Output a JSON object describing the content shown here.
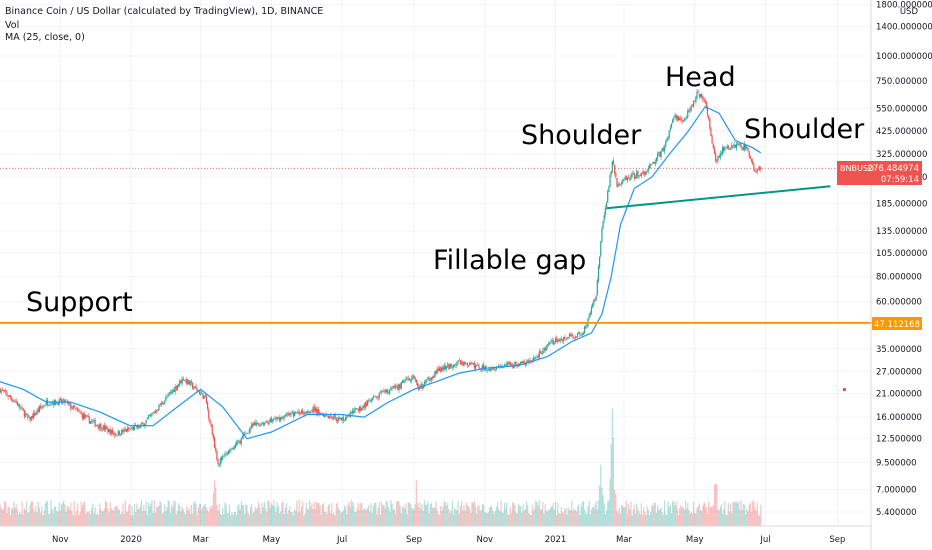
{
  "header": {
    "symbol_line": "Binance Coin / US Dollar (calculated by TradingView), 1D, BINANCE",
    "vol_label": "Vol",
    "ma_label": "MA (25, close, 0)"
  },
  "annotations": {
    "support": "Support",
    "fillable_gap": "Fillable gap",
    "left_shoulder": "Shoulder",
    "head": "Head",
    "right_shoulder": "Shoulder"
  },
  "price_badge": {
    "symbol": "BNBUSD",
    "price": "276.484974",
    "countdown": "07:59:14"
  },
  "support_badge": "47.112168",
  "chart_data": {
    "type": "candlestick",
    "y_scale": "log",
    "currency_label": "USD",
    "ylim": [
      4.6,
      1900
    ],
    "y_ticks": [
      {
        "value": 1800,
        "label": "1800.000000"
      },
      {
        "value": 1400,
        "label": "1400.000000"
      },
      {
        "value": 1000,
        "label": "1000.000000"
      },
      {
        "value": 750,
        "label": "750.000000"
      },
      {
        "value": 550,
        "label": "550.000000"
      },
      {
        "value": 425,
        "label": "425.000000"
      },
      {
        "value": 325,
        "label": "325.000000"
      },
      {
        "value": 250,
        "label": "250.000000"
      },
      {
        "value": 185,
        "label": "185.000000"
      },
      {
        "value": 135,
        "label": "135.000000"
      },
      {
        "value": 105,
        "label": "105.000000"
      },
      {
        "value": 80,
        "label": "80.000000"
      },
      {
        "value": 60,
        "label": "60.000000"
      },
      {
        "value": 35,
        "label": "35.000000"
      },
      {
        "value": 27,
        "label": "27.000000"
      },
      {
        "value": 21,
        "label": "21.000000"
      },
      {
        "value": 16,
        "label": "16.000000"
      },
      {
        "value": 12.5,
        "label": "12.500000"
      },
      {
        "value": 9.5,
        "label": "9.500000"
      },
      {
        "value": 7,
        "label": "7.000000"
      },
      {
        "value": 5.4,
        "label": "5.400000"
      }
    ],
    "x_ticks": [
      {
        "date": "2019-11-01",
        "label": "Nov"
      },
      {
        "date": "2020-01-01",
        "label": "2020"
      },
      {
        "date": "2020-03-01",
        "label": "Mar"
      },
      {
        "date": "2020-05-01",
        "label": "May"
      },
      {
        "date": "2020-07-01",
        "label": "Jul"
      },
      {
        "date": "2020-09-01",
        "label": "Sep"
      },
      {
        "date": "2020-11-01",
        "label": "Nov"
      },
      {
        "date": "2021-01-01",
        "label": "2021"
      },
      {
        "date": "2021-03-01",
        "label": "Mar"
      },
      {
        "date": "2021-05-01",
        "label": "May"
      },
      {
        "date": "2021-07-01",
        "label": "Jul"
      },
      {
        "date": "2021-09-01",
        "label": "Sep"
      }
    ],
    "x_range": [
      "2019-09-10",
      "2021-09-30"
    ],
    "series": [
      {
        "name": "BNBUSD",
        "kind": "close_path",
        "points": [
          [
            "2019-09-10",
            22
          ],
          [
            "2019-09-24",
            19
          ],
          [
            "2019-10-05",
            15.5
          ],
          [
            "2019-10-20",
            19
          ],
          [
            "2019-11-05",
            19
          ],
          [
            "2019-11-25",
            15.5
          ],
          [
            "2019-12-18",
            13.2
          ],
          [
            "2020-01-10",
            14.5
          ],
          [
            "2020-01-25",
            18
          ],
          [
            "2020-02-15",
            25
          ],
          [
            "2020-03-05",
            20
          ],
          [
            "2020-03-12",
            12.5
          ],
          [
            "2020-03-16",
            9.5
          ],
          [
            "2020-03-28",
            11
          ],
          [
            "2020-04-15",
            14.5
          ],
          [
            "2020-05-10",
            16
          ],
          [
            "2020-06-05",
            17.5
          ],
          [
            "2020-06-30",
            15.5
          ],
          [
            "2020-07-15",
            17.5
          ],
          [
            "2020-08-05",
            21
          ],
          [
            "2020-08-20",
            23
          ],
          [
            "2020-09-01",
            26
          ],
          [
            "2020-09-05",
            22
          ],
          [
            "2020-09-20",
            27
          ],
          [
            "2020-10-10",
            30
          ],
          [
            "2020-11-01",
            28
          ],
          [
            "2020-11-20",
            29
          ],
          [
            "2020-12-10",
            30
          ],
          [
            "2020-12-30",
            38
          ],
          [
            "2021-01-25",
            42
          ],
          [
            "2021-02-05",
            65
          ],
          [
            "2021-02-10",
            135
          ],
          [
            "2021-02-19",
            300
          ],
          [
            "2021-02-23",
            230
          ],
          [
            "2021-03-05",
            250
          ],
          [
            "2021-03-20",
            265
          ],
          [
            "2021-04-05",
            350
          ],
          [
            "2021-04-12",
            500
          ],
          [
            "2021-04-22",
            480
          ],
          [
            "2021-05-03",
            650
          ],
          [
            "2021-05-10",
            600
          ],
          [
            "2021-05-19",
            300
          ],
          [
            "2021-05-25",
            340
          ],
          [
            "2021-06-05",
            360
          ],
          [
            "2021-06-15",
            350
          ],
          [
            "2021-06-22",
            265
          ],
          [
            "2021-06-27",
            276
          ]
        ]
      },
      {
        "name": "MA 25",
        "kind": "ma",
        "points": [
          [
            "2019-09-10",
            24
          ],
          [
            "2019-09-30",
            22
          ],
          [
            "2019-10-20",
            19
          ],
          [
            "2019-11-10",
            19
          ],
          [
            "2019-12-05",
            17
          ],
          [
            "2019-12-31",
            14.5
          ],
          [
            "2020-01-20",
            14.5
          ],
          [
            "2020-02-10",
            18
          ],
          [
            "2020-03-01",
            22
          ],
          [
            "2020-03-20",
            18
          ],
          [
            "2020-04-10",
            12.5
          ],
          [
            "2020-05-01",
            13.5
          ],
          [
            "2020-06-01",
            16.5
          ],
          [
            "2020-06-30",
            16.5
          ],
          [
            "2020-07-20",
            16
          ],
          [
            "2020-08-10",
            19
          ],
          [
            "2020-09-01",
            22
          ],
          [
            "2020-09-20",
            24
          ],
          [
            "2020-10-10",
            26.5
          ],
          [
            "2020-11-01",
            28
          ],
          [
            "2020-12-01",
            29
          ],
          [
            "2020-12-25",
            32
          ],
          [
            "2021-01-15",
            38
          ],
          [
            "2021-02-01",
            42
          ],
          [
            "2021-02-10",
            52
          ],
          [
            "2021-02-18",
            80
          ],
          [
            "2021-02-26",
            145
          ],
          [
            "2021-03-10",
            220
          ],
          [
            "2021-03-25",
            250
          ],
          [
            "2021-04-10",
            330
          ],
          [
            "2021-04-25",
            420
          ],
          [
            "2021-05-10",
            560
          ],
          [
            "2021-05-22",
            520
          ],
          [
            "2021-06-05",
            380
          ],
          [
            "2021-06-20",
            350
          ],
          [
            "2021-06-27",
            330
          ]
        ]
      }
    ],
    "annotations": [
      {
        "kind": "horizontal_line",
        "value": 47.112168,
        "label": "Support"
      },
      {
        "kind": "trendline",
        "label": "neckline",
        "start": [
          "2021-02-14",
          175
        ],
        "end": [
          "2021-08-26",
          225
        ]
      }
    ],
    "volume_peaks": [
      {
        "date": "2020-03-13",
        "rel": 0.45
      },
      {
        "date": "2020-09-03",
        "rel": 0.35
      },
      {
        "date": "2021-02-09",
        "rel": 0.55
      },
      {
        "date": "2021-02-19",
        "rel": 1.0
      },
      {
        "date": "2021-05-19",
        "rel": 0.5
      }
    ],
    "colors": {
      "up": "#26a69a",
      "down": "#ef5350",
      "ma": "#2196f3",
      "support": "#ff9800",
      "neckline": "#009688",
      "price_badge": "#ef5350"
    }
  }
}
